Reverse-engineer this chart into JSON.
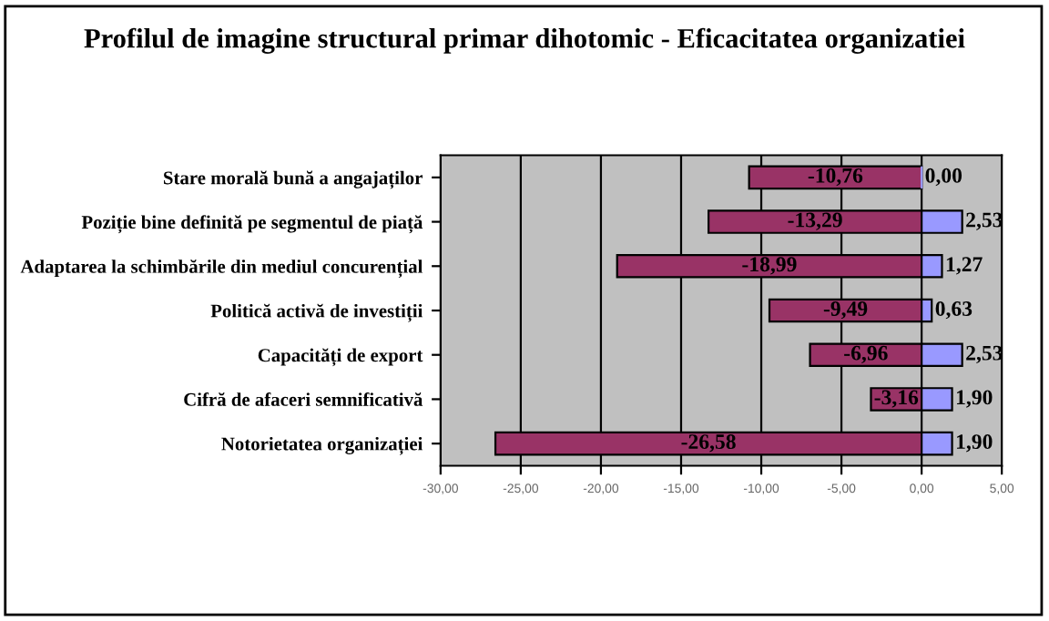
{
  "chart_data": {
    "type": "bar",
    "orientation": "horizontal",
    "stacked": true,
    "title": "Profilul de imagine structural primar dihotomic - Eficacitatea organizatiei",
    "categories": [
      "Stare morală bună a angajaților",
      "Poziție bine definită pe segmentul de piață",
      "Adaptarea la schimbările din mediul concurențial",
      "Politică activă de investiții",
      "Capacități de export",
      "Cifră de afaceri semnificativă",
      "Notorietatea organizației"
    ],
    "series": [
      {
        "color": "#993366",
        "values": [
          -10.76,
          -13.29,
          -18.99,
          -9.49,
          -6.96,
          -3.16,
          -26.58
        ],
        "value_labels": [
          "-10,76",
          "-13,29",
          "-18,99",
          "-9,49",
          "-6,96",
          "-3,16",
          "-26,58"
        ]
      },
      {
        "color": "#9999ff",
        "values": [
          0.0,
          2.53,
          1.27,
          0.63,
          2.53,
          1.9,
          1.9
        ],
        "value_labels": [
          "0,00",
          "2,53",
          "1,27",
          "0,63",
          "2,53",
          "1,90",
          "1,90"
        ]
      }
    ],
    "xlim": [
      -30,
      5
    ],
    "xticks": [
      {
        "value": -30,
        "label": "-30,00"
      },
      {
        "value": -25,
        "label": "-25,00"
      },
      {
        "value": -20,
        "label": "-20,00"
      },
      {
        "value": -15,
        "label": "-15,00"
      },
      {
        "value": -10,
        "label": "-10,00"
      },
      {
        "value": -5,
        "label": "-5,00"
      },
      {
        "value": 0,
        "label": "0,00"
      },
      {
        "value": 5,
        "label": "5,00"
      }
    ],
    "grid": "x",
    "legend": false
  }
}
